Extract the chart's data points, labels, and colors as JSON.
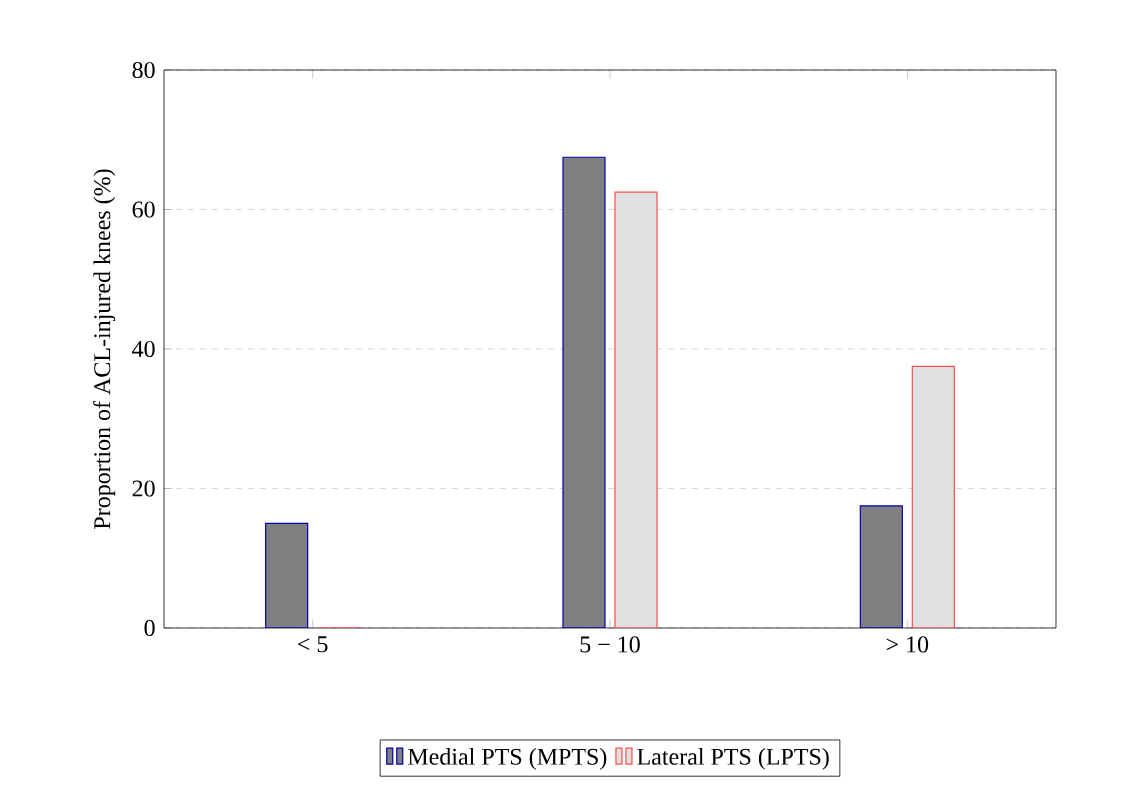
{
  "chart_data": {
    "type": "bar",
    "ylabel": "Proportion of ACL-injured knees (%)",
    "categories": [
      "< 5",
      "5 − 10",
      "> 10"
    ],
    "series": [
      {
        "name": "Medial PTS (MPTS)",
        "color": "#808080",
        "values": [
          15,
          67.5,
          17.5
        ]
      },
      {
        "name": "Lateral PTS (LPTS)",
        "color": "#e0e0e0",
        "values": [
          0,
          62.5,
          37.5
        ]
      }
    ],
    "ylim": [
      0,
      80
    ],
    "yticks": [
      0,
      20,
      40,
      60,
      80
    ],
    "grid": "y",
    "legend": "bottom"
  }
}
